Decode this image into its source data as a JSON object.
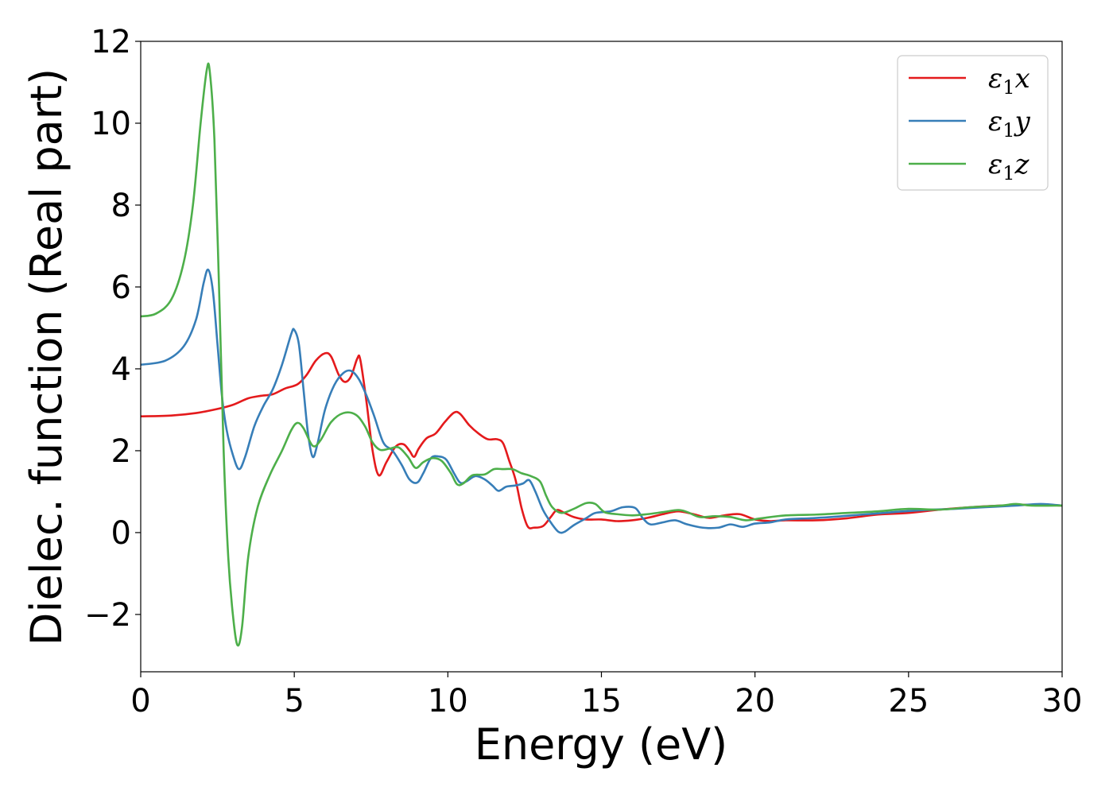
{
  "chart_data": {
    "type": "line",
    "title": "",
    "xlabel": "Energy (eV)",
    "ylabel": "Dielec. function (Real part)",
    "xlim": [
      0,
      30
    ],
    "ylim": [
      -3.4,
      12
    ],
    "xticks": [
      0,
      5,
      10,
      15,
      20,
      25,
      30
    ],
    "yticks": [
      -2,
      0,
      2,
      4,
      6,
      8,
      10,
      12
    ],
    "ytick_labels": [
      "−2",
      "0",
      "2",
      "4",
      "6",
      "8",
      "10",
      "12"
    ],
    "grid": false,
    "legend_position": "top-right",
    "series": [
      {
        "name": "ε1x",
        "symbol": "ε",
        "sub": "1",
        "var": "x",
        "color": "#e41a1c",
        "points": [
          [
            0,
            2.84
          ],
          [
            1,
            2.86
          ],
          [
            1.8,
            2.92
          ],
          [
            2.5,
            3.02
          ],
          [
            3,
            3.12
          ],
          [
            3.5,
            3.28
          ],
          [
            3.9,
            3.34
          ],
          [
            4.3,
            3.38
          ],
          [
            4.7,
            3.52
          ],
          [
            5.1,
            3.62
          ],
          [
            5.4,
            3.85
          ],
          [
            5.7,
            4.2
          ],
          [
            6.0,
            4.38
          ],
          [
            6.2,
            4.3
          ],
          [
            6.45,
            3.85
          ],
          [
            6.65,
            3.68
          ],
          [
            6.85,
            3.82
          ],
          [
            7.05,
            4.25
          ],
          [
            7.15,
            4.22
          ],
          [
            7.35,
            3.2
          ],
          [
            7.55,
            2.0
          ],
          [
            7.75,
            1.4
          ],
          [
            8.0,
            1.72
          ],
          [
            8.3,
            2.1
          ],
          [
            8.55,
            2.16
          ],
          [
            8.75,
            2.0
          ],
          [
            8.9,
            1.85
          ],
          [
            9.05,
            2.05
          ],
          [
            9.3,
            2.3
          ],
          [
            9.6,
            2.42
          ],
          [
            9.9,
            2.7
          ],
          [
            10.2,
            2.93
          ],
          [
            10.4,
            2.9
          ],
          [
            10.7,
            2.62
          ],
          [
            11.0,
            2.42
          ],
          [
            11.3,
            2.28
          ],
          [
            11.6,
            2.28
          ],
          [
            11.8,
            2.18
          ],
          [
            12.0,
            1.75
          ],
          [
            12.2,
            1.3
          ],
          [
            12.4,
            0.6
          ],
          [
            12.6,
            0.15
          ],
          [
            12.8,
            0.12
          ],
          [
            13.1,
            0.16
          ],
          [
            13.35,
            0.38
          ],
          [
            13.55,
            0.55
          ],
          [
            13.8,
            0.48
          ],
          [
            14.1,
            0.38
          ],
          [
            14.5,
            0.32
          ],
          [
            15.0,
            0.32
          ],
          [
            15.5,
            0.28
          ],
          [
            16.0,
            0.3
          ],
          [
            16.5,
            0.36
          ],
          [
            17.0,
            0.45
          ],
          [
            17.5,
            0.52
          ],
          [
            18.0,
            0.45
          ],
          [
            18.5,
            0.36
          ],
          [
            19.0,
            0.42
          ],
          [
            19.5,
            0.45
          ],
          [
            20.0,
            0.32
          ],
          [
            20.5,
            0.28
          ],
          [
            21.0,
            0.3
          ],
          [
            22.0,
            0.3
          ],
          [
            23.0,
            0.35
          ],
          [
            24.0,
            0.44
          ],
          [
            25.0,
            0.48
          ],
          [
            26.0,
            0.56
          ],
          [
            27.0,
            0.62
          ],
          [
            28.0,
            0.66
          ],
          [
            29.0,
            0.68
          ],
          [
            30.0,
            0.66
          ]
        ]
      },
      {
        "name": "ε1y",
        "symbol": "ε",
        "sub": "1",
        "var": "y",
        "color": "#377eb8",
        "points": [
          [
            0,
            4.1
          ],
          [
            0.8,
            4.2
          ],
          [
            1.4,
            4.55
          ],
          [
            1.8,
            5.2
          ],
          [
            2.05,
            6.1
          ],
          [
            2.2,
            6.42
          ],
          [
            2.35,
            5.9
          ],
          [
            2.5,
            4.6
          ],
          [
            2.65,
            3.3
          ],
          [
            2.8,
            2.5
          ],
          [
            3.0,
            1.9
          ],
          [
            3.2,
            1.55
          ],
          [
            3.4,
            1.85
          ],
          [
            3.7,
            2.6
          ],
          [
            4.0,
            3.1
          ],
          [
            4.3,
            3.5
          ],
          [
            4.6,
            4.1
          ],
          [
            4.9,
            4.85
          ],
          [
            5.0,
            4.95
          ],
          [
            5.15,
            4.6
          ],
          [
            5.3,
            3.5
          ],
          [
            5.45,
            2.4
          ],
          [
            5.6,
            1.85
          ],
          [
            5.75,
            2.15
          ],
          [
            6.0,
            3.0
          ],
          [
            6.3,
            3.6
          ],
          [
            6.6,
            3.9
          ],
          [
            6.85,
            3.95
          ],
          [
            7.1,
            3.75
          ],
          [
            7.35,
            3.35
          ],
          [
            7.6,
            2.85
          ],
          [
            7.9,
            2.2
          ],
          [
            8.2,
            2.0
          ],
          [
            8.5,
            1.65
          ],
          [
            8.75,
            1.3
          ],
          [
            9.0,
            1.22
          ],
          [
            9.2,
            1.45
          ],
          [
            9.45,
            1.82
          ],
          [
            9.7,
            1.86
          ],
          [
            9.95,
            1.78
          ],
          [
            10.2,
            1.45
          ],
          [
            10.4,
            1.22
          ],
          [
            10.6,
            1.25
          ],
          [
            10.9,
            1.38
          ],
          [
            11.2,
            1.3
          ],
          [
            11.45,
            1.15
          ],
          [
            11.65,
            1.02
          ],
          [
            11.9,
            1.12
          ],
          [
            12.2,
            1.15
          ],
          [
            12.45,
            1.2
          ],
          [
            12.65,
            1.28
          ],
          [
            12.85,
            1.0
          ],
          [
            13.1,
            0.55
          ],
          [
            13.35,
            0.25
          ],
          [
            13.6,
            0.02
          ],
          [
            13.8,
            0.02
          ],
          [
            14.1,
            0.18
          ],
          [
            14.5,
            0.35
          ],
          [
            14.8,
            0.48
          ],
          [
            15.3,
            0.52
          ],
          [
            15.7,
            0.62
          ],
          [
            16.1,
            0.6
          ],
          [
            16.35,
            0.35
          ],
          [
            16.6,
            0.2
          ],
          [
            17.0,
            0.25
          ],
          [
            17.4,
            0.3
          ],
          [
            17.8,
            0.2
          ],
          [
            18.3,
            0.12
          ],
          [
            18.8,
            0.12
          ],
          [
            19.2,
            0.2
          ],
          [
            19.6,
            0.14
          ],
          [
            20.0,
            0.22
          ],
          [
            20.5,
            0.25
          ],
          [
            21.0,
            0.32
          ],
          [
            21.8,
            0.35
          ],
          [
            22.5,
            0.38
          ],
          [
            23.5,
            0.44
          ],
          [
            24.5,
            0.5
          ],
          [
            25.5,
            0.55
          ],
          [
            26.5,
            0.58
          ],
          [
            27.5,
            0.62
          ],
          [
            28.5,
            0.66
          ],
          [
            29.3,
            0.7
          ],
          [
            30.0,
            0.66
          ]
        ]
      },
      {
        "name": "ε1z",
        "symbol": "ε",
        "sub": "1",
        "var": "z",
        "color": "#4daf4a",
        "points": [
          [
            0,
            5.28
          ],
          [
            0.5,
            5.35
          ],
          [
            1.0,
            5.7
          ],
          [
            1.4,
            6.6
          ],
          [
            1.7,
            8.0
          ],
          [
            1.95,
            10.0
          ],
          [
            2.15,
            11.3
          ],
          [
            2.25,
            11.25
          ],
          [
            2.4,
            9.6
          ],
          [
            2.55,
            6.0
          ],
          [
            2.7,
            2.0
          ],
          [
            2.85,
            -0.6
          ],
          [
            3.0,
            -2.0
          ],
          [
            3.15,
            -2.75
          ],
          [
            3.3,
            -2.3
          ],
          [
            3.5,
            -0.6
          ],
          [
            3.8,
            0.6
          ],
          [
            4.2,
            1.4
          ],
          [
            4.6,
            2.0
          ],
          [
            4.9,
            2.5
          ],
          [
            5.1,
            2.68
          ],
          [
            5.3,
            2.55
          ],
          [
            5.6,
            2.12
          ],
          [
            5.85,
            2.25
          ],
          [
            6.2,
            2.7
          ],
          [
            6.6,
            2.92
          ],
          [
            7.0,
            2.88
          ],
          [
            7.3,
            2.6
          ],
          [
            7.55,
            2.2
          ],
          [
            7.8,
            2.02
          ],
          [
            8.1,
            2.05
          ],
          [
            8.4,
            2.08
          ],
          [
            8.7,
            1.85
          ],
          [
            8.95,
            1.58
          ],
          [
            9.2,
            1.72
          ],
          [
            9.5,
            1.82
          ],
          [
            9.8,
            1.75
          ],
          [
            10.1,
            1.45
          ],
          [
            10.3,
            1.18
          ],
          [
            10.5,
            1.2
          ],
          [
            10.8,
            1.4
          ],
          [
            11.2,
            1.42
          ],
          [
            11.5,
            1.55
          ],
          [
            11.8,
            1.55
          ],
          [
            12.1,
            1.55
          ],
          [
            12.4,
            1.45
          ],
          [
            12.7,
            1.38
          ],
          [
            13.0,
            1.25
          ],
          [
            13.2,
            0.9
          ],
          [
            13.4,
            0.62
          ],
          [
            13.7,
            0.48
          ],
          [
            14.1,
            0.58
          ],
          [
            14.5,
            0.72
          ],
          [
            14.8,
            0.7
          ],
          [
            15.1,
            0.5
          ],
          [
            15.5,
            0.45
          ],
          [
            16.0,
            0.42
          ],
          [
            16.5,
            0.45
          ],
          [
            17.0,
            0.5
          ],
          [
            17.5,
            0.55
          ],
          [
            17.8,
            0.5
          ],
          [
            18.2,
            0.38
          ],
          [
            18.7,
            0.4
          ],
          [
            19.2,
            0.38
          ],
          [
            19.7,
            0.3
          ],
          [
            20.2,
            0.35
          ],
          [
            21.0,
            0.42
          ],
          [
            22.0,
            0.44
          ],
          [
            23.0,
            0.48
          ],
          [
            24.0,
            0.52
          ],
          [
            25.0,
            0.58
          ],
          [
            26.0,
            0.56
          ],
          [
            27.0,
            0.62
          ],
          [
            28.0,
            0.66
          ],
          [
            28.5,
            0.7
          ],
          [
            29.0,
            0.66
          ],
          [
            30.0,
            0.66
          ]
        ]
      }
    ]
  }
}
